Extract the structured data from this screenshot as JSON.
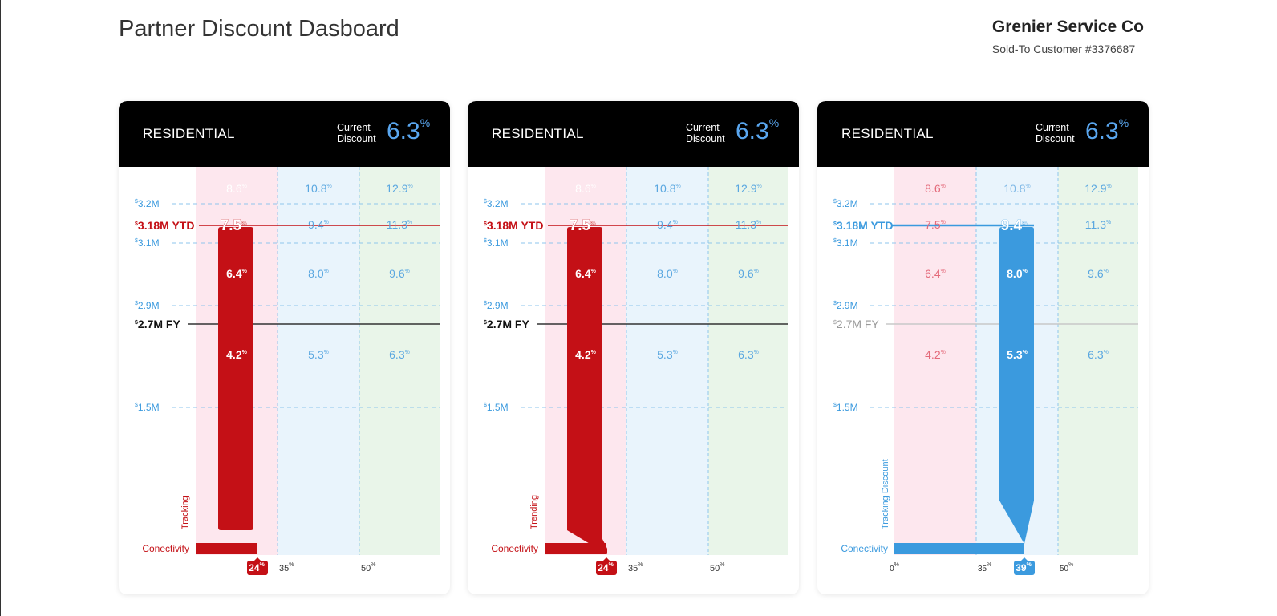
{
  "page": {
    "title": "Partner Discount Dasboard",
    "company_name": "Grenier Service Co",
    "customer_line": "Sold-To Customer #3376687"
  },
  "colors": {
    "red": "#c41016",
    "blue": "#3b9ade",
    "tier1_bg": "#fde7ee",
    "tier2_bg": "#e9f4fc",
    "tier3_bg": "#e9f5e9"
  },
  "cards": [
    {
      "segment": "RESIDENTIAL",
      "discount_caption": [
        "Current",
        "Discount"
      ],
      "discount_value": "6.3",
      "discount_unit": "%",
      "ytd_label": "3.18M YTD",
      "fy_label": "2.7M FY",
      "side_label": "Tracking",
      "conectivity_label": "Conectivity",
      "conectivity_value": "24",
      "mode": "red",
      "highlight_col": 0
    },
    {
      "segment": "RESIDENTIAL",
      "discount_caption": [
        "Current",
        "Discount"
      ],
      "discount_value": "6.3",
      "discount_unit": "%",
      "ytd_label": "3.18M YTD",
      "fy_label": "2.7M FY",
      "side_label": "Trending",
      "conectivity_label": "Conectivity",
      "conectivity_value": "24",
      "mode": "red-trend",
      "highlight_col": 0
    },
    {
      "segment": "RESIDENTIAL",
      "discount_caption": [
        "Current",
        "Discount"
      ],
      "discount_value": "6.3",
      "discount_unit": "%",
      "ytd_label": "3.18M YTD",
      "fy_label": "2.7M FY",
      "side_label": "Tracking Discount",
      "conectivity_label": "Conectivity",
      "conectivity_value": "39",
      "mode": "blue",
      "highlight_col": 1
    }
  ],
  "chart_data": {
    "type": "table",
    "y_levels": [
      {
        "label": "3.2M",
        "value": 3.2
      },
      {
        "label": "3.1M",
        "value": 3.1
      },
      {
        "label": "2.9M",
        "value": 2.9
      },
      {
        "label": "1.5M",
        "value": 1.5
      }
    ],
    "ytd_value": 3.18,
    "fy_value": 2.7,
    "x_ticks": [
      "0",
      "35",
      "50"
    ],
    "tier_rows": [
      [
        "8.6",
        "10.8",
        "12.9"
      ],
      [
        "7.5",
        "9.4",
        "11.3"
      ],
      [
        "6.4",
        "8.0",
        "9.6"
      ],
      [
        "4.2",
        "5.3",
        "6.3"
      ]
    ],
    "currency": "$",
    "pct": "%"
  }
}
